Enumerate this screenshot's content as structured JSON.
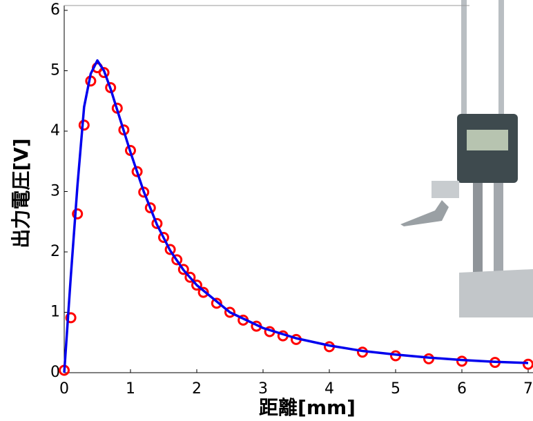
{
  "chart_data": {
    "type": "scatter",
    "xlabel": "距離[mm]",
    "ylabel": "出力電圧[V]",
    "xlim": [
      0,
      7
    ],
    "ylim": [
      0,
      6
    ],
    "xticks": [
      0,
      1,
      2,
      3,
      4,
      5,
      6,
      7
    ],
    "yticks": [
      0,
      1,
      2,
      3,
      4,
      5,
      6
    ],
    "series": [
      {
        "type": "scatter",
        "color": "#ff0000",
        "x": [
          0,
          0.1,
          0.2,
          0.3,
          0.4,
          0.5,
          0.6,
          0.7,
          0.8,
          0.9,
          1.0,
          1.1,
          1.2,
          1.3,
          1.4,
          1.5,
          1.6,
          1.7,
          1.8,
          1.9,
          2.0,
          2.1,
          2.3,
          2.5,
          2.7,
          2.9,
          3.1,
          3.3,
          3.5,
          4.0,
          4.5,
          5.0,
          5.5,
          6.0,
          6.5,
          7.0
        ],
        "values": [
          0.04,
          0.91,
          2.63,
          4.1,
          4.83,
          5.05,
          4.97,
          4.72,
          4.38,
          4.02,
          3.68,
          3.33,
          2.99,
          2.73,
          2.47,
          2.24,
          2.04,
          1.87,
          1.71,
          1.58,
          1.45,
          1.33,
          1.15,
          1.0,
          0.87,
          0.77,
          0.68,
          0.61,
          0.55,
          0.43,
          0.34,
          0.28,
          0.23,
          0.19,
          0.17,
          0.14
        ]
      },
      {
        "type": "line",
        "color": "#0000ee",
        "x": [
          0,
          0.1,
          0.2,
          0.3,
          0.4,
          0.5,
          0.6,
          0.7,
          0.8,
          1.0,
          1.2,
          1.4,
          1.6,
          1.8,
          2.0,
          2.5,
          3.0,
          3.5,
          4.0,
          4.5,
          5.0,
          5.5,
          6.0,
          6.5,
          7.0
        ],
        "values": [
          0,
          1.6,
          3.1,
          4.4,
          4.95,
          5.17,
          5.0,
          4.7,
          4.35,
          3.65,
          3.0,
          2.45,
          2.02,
          1.7,
          1.45,
          1.0,
          0.74,
          0.57,
          0.45,
          0.36,
          0.3,
          0.25,
          0.21,
          0.18,
          0.16
        ]
      }
    ]
  }
}
